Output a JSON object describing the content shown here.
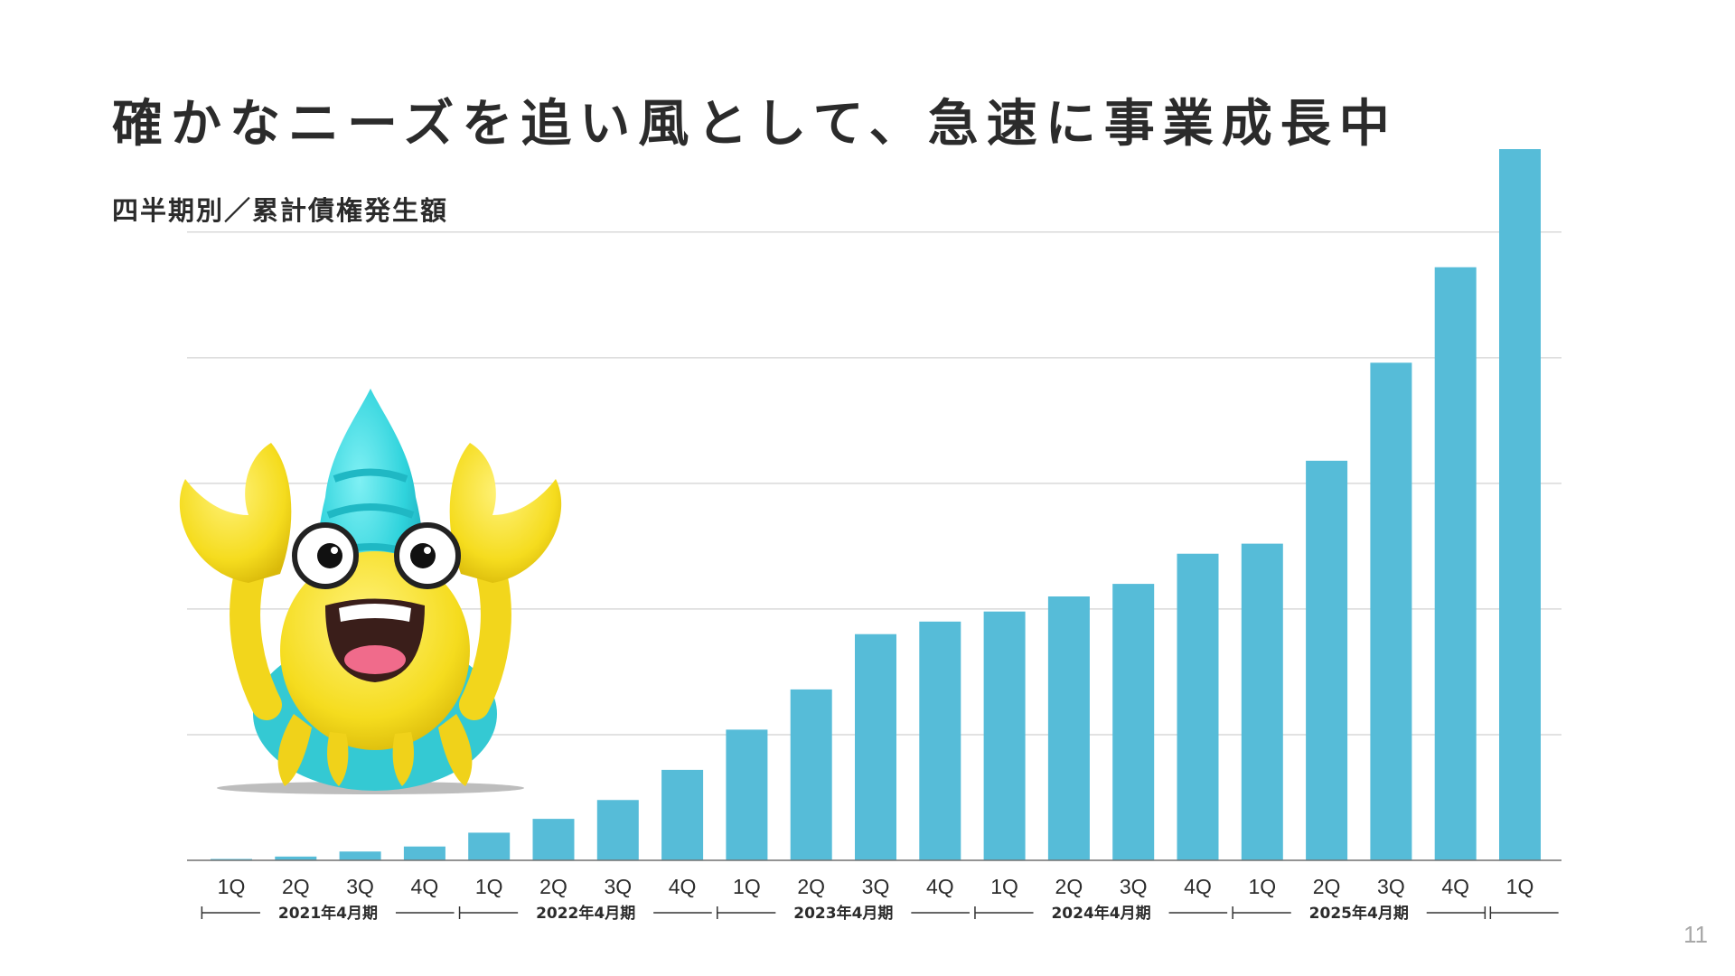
{
  "slide": {
    "title": "確かなニーズを追い風として、急速に事業成長中",
    "subtitle": "四半期別／累計債権発生額",
    "page_number": "11"
  },
  "colors": {
    "bar": "#56bcd8",
    "gridline": "#d9d9d9",
    "axis": "#707070",
    "text": "#2b2b2b"
  },
  "mascot": {
    "name": "hermit-crab-mascot"
  },
  "chart_data": {
    "type": "bar",
    "categories": [
      "1Q",
      "2Q",
      "3Q",
      "4Q",
      "1Q",
      "2Q",
      "3Q",
      "4Q",
      "1Q",
      "2Q",
      "3Q",
      "4Q",
      "1Q",
      "2Q",
      "3Q",
      "4Q",
      "1Q",
      "2Q",
      "3Q",
      "4Q",
      "1Q"
    ],
    "values": [
      0.05,
      0.15,
      0.35,
      0.55,
      1.1,
      1.65,
      2.4,
      3.6,
      5.2,
      6.8,
      9.0,
      9.5,
      9.9,
      10.5,
      11.0,
      12.2,
      12.6,
      15.9,
      19.8,
      23.6,
      28.3
    ],
    "ylim": [
      0,
      28.3
    ],
    "gridlines": [
      5,
      10,
      15,
      20,
      25
    ],
    "grid": true,
    "fiscal_years": [
      {
        "label": "2021年4月期",
        "start": 0,
        "end": 3
      },
      {
        "label": "2022年4月期",
        "start": 4,
        "end": 7
      },
      {
        "label": "2023年4月期",
        "start": 8,
        "end": 11
      },
      {
        "label": "2024年4月期",
        "start": 12,
        "end": 15
      },
      {
        "label": "2025年4月期",
        "start": 16,
        "end": 19
      },
      {
        "label": "",
        "start": 20,
        "end": 20
      }
    ]
  }
}
